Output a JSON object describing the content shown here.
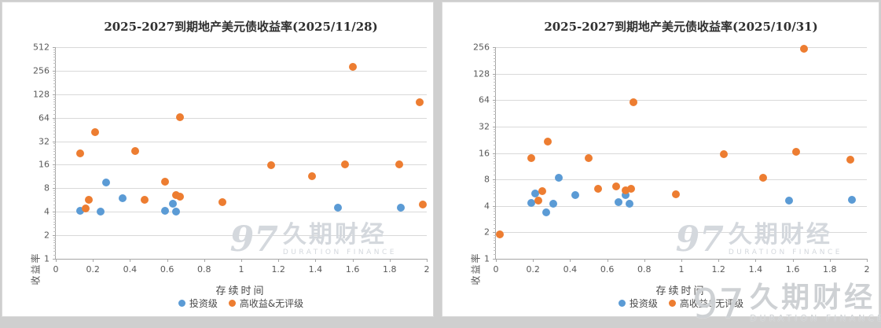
{
  "watermark": {
    "logo": "97",
    "brand": "久期财经",
    "sub": "DURATION FINANCE"
  },
  "colors": {
    "investment_grade": "#5B9BD5",
    "high_yield": "#ED7D31",
    "gridline": "#D9D9D9",
    "axis_text": "#595959"
  },
  "chart_data": [
    {
      "type": "scatter",
      "title": "2025-2027到期地产美元债收益率(2025/11/28)",
      "xlabel": "存续时间",
      "ylabel": "收益率",
      "y_scale": "log2",
      "xlim": [
        0,
        2
      ],
      "ylim": [
        1,
        512
      ],
      "x_ticks": [
        0,
        0.2,
        0.4,
        0.6,
        0.8,
        1,
        1.2,
        1.4,
        1.6,
        1.8,
        2
      ],
      "y_ticks": [
        1,
        2,
        4,
        8,
        16,
        32,
        64,
        128,
        256,
        512
      ],
      "grid": true,
      "legend_position": "bottom",
      "series": [
        {
          "name": "投资级",
          "key": "investment-grade",
          "color": "#5B9BD5",
          "points": [
            [
              0.13,
              4.1
            ],
            [
              0.24,
              4.0
            ],
            [
              0.27,
              9.5
            ],
            [
              0.36,
              6.0
            ],
            [
              0.59,
              4.1
            ],
            [
              0.63,
              5.1
            ],
            [
              0.65,
              4.0
            ],
            [
              1.52,
              4.5
            ],
            [
              1.86,
              4.5
            ]
          ]
        },
        {
          "name": "高收益&无评级",
          "key": "high-yield-unrated",
          "color": "#ED7D31",
          "points": [
            [
              0.13,
              22.5
            ],
            [
              0.16,
              4.4
            ],
            [
              0.18,
              5.7
            ],
            [
              0.21,
              42
            ],
            [
              0.43,
              24
            ],
            [
              0.48,
              5.7
            ],
            [
              0.59,
              9.6
            ],
            [
              0.65,
              6.5
            ],
            [
              0.67,
              6.2
            ],
            [
              0.67,
              65
            ],
            [
              0.9,
              5.3
            ],
            [
              1.16,
              15.8
            ],
            [
              1.38,
              11.3
            ],
            [
              1.56,
              16.1
            ],
            [
              1.6,
              290
            ],
            [
              1.85,
              16.1
            ],
            [
              1.96,
              100
            ],
            [
              1.98,
              4.9
            ]
          ]
        }
      ]
    },
    {
      "type": "scatter",
      "title": "2025-2027到期地产美元债收益率(2025/10/31)",
      "xlabel": "存续时间",
      "ylabel": "收益率",
      "y_scale": "log2",
      "xlim": [
        0,
        2
      ],
      "ylim": [
        1,
        256
      ],
      "x_ticks": [
        0,
        0.2,
        0.4,
        0.6,
        0.8,
        1,
        1.2,
        1.4,
        1.6,
        1.8,
        2
      ],
      "y_ticks": [
        1,
        2,
        4,
        8,
        16,
        32,
        64,
        128,
        256
      ],
      "grid": true,
      "legend_position": "bottom",
      "series": [
        {
          "name": "投资级",
          "key": "investment-grade",
          "color": "#5B9BD5",
          "points": [
            [
              0.19,
              4.3
            ],
            [
              0.21,
              5.5
            ],
            [
              0.27,
              3.4
            ],
            [
              0.31,
              4.2
            ],
            [
              0.34,
              8.3
            ],
            [
              0.43,
              5.3
            ],
            [
              0.66,
              4.4
            ],
            [
              0.7,
              5.3
            ],
            [
              0.72,
              4.2
            ],
            [
              1.58,
              4.6
            ],
            [
              1.92,
              4.7
            ]
          ]
        },
        {
          "name": "高收益&无评级",
          "key": "high-yield-unrated",
          "color": "#ED7D31",
          "points": [
            [
              0.02,
              1.9
            ],
            [
              0.19,
              14
            ],
            [
              0.23,
              4.6
            ],
            [
              0.25,
              5.9
            ],
            [
              0.28,
              21.5
            ],
            [
              0.5,
              14
            ],
            [
              0.55,
              6.3
            ],
            [
              0.65,
              6.6
            ],
            [
              0.7,
              6.0
            ],
            [
              0.73,
              6.3
            ],
            [
              0.74,
              61
            ],
            [
              0.97,
              5.4
            ],
            [
              1.23,
              15.5
            ],
            [
              1.44,
              8.4
            ],
            [
              1.62,
              16.5
            ],
            [
              1.66,
              248
            ],
            [
              1.91,
              13.4
            ]
          ]
        }
      ]
    }
  ]
}
